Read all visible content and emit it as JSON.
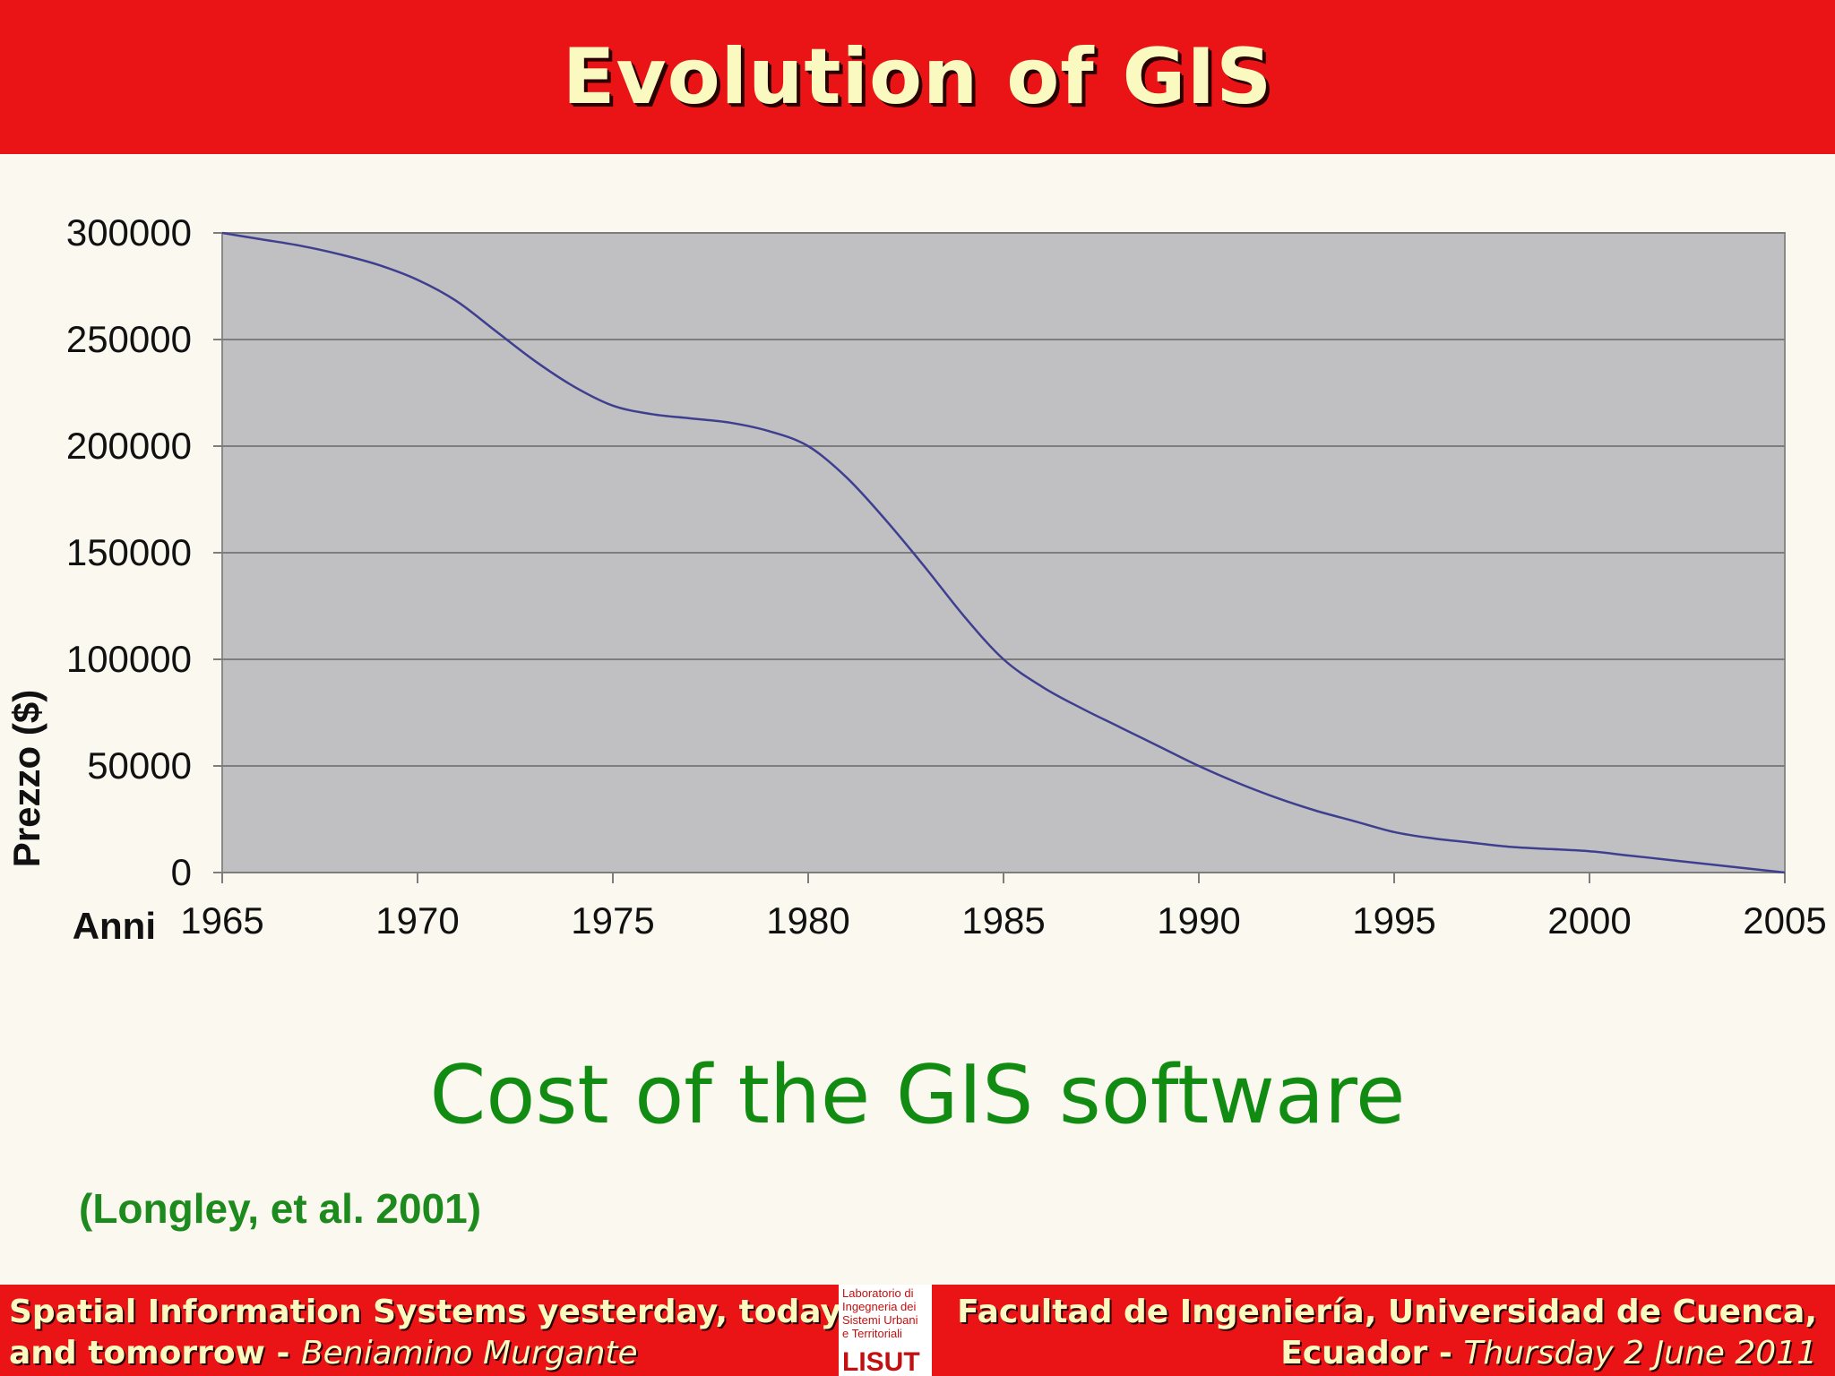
{
  "header": {
    "title": "Evolution of GIS"
  },
  "chart_data": {
    "type": "line",
    "title": "",
    "ylabel": "Prezzo ($)",
    "xlabel": "Anni",
    "xlim": [
      1965,
      2005
    ],
    "ylim": [
      0,
      300000
    ],
    "x_ticks": [
      "1965",
      "1970",
      "1975",
      "1980",
      "1985",
      "1990",
      "1995",
      "2000",
      "2005"
    ],
    "y_ticks": [
      "300000",
      "250000",
      "200000",
      "150000",
      "100000",
      "50000",
      "0"
    ],
    "grid": true,
    "background": "#c0bfc2",
    "line_color": "#3f3f8f",
    "series": [
      {
        "x": [
          1965,
          1966,
          1967,
          1968,
          1969,
          1970,
          1971,
          1972,
          1973,
          1974,
          1975,
          1976,
          1977,
          1978,
          1979,
          1980,
          1981,
          1982,
          1983,
          1984,
          1985,
          1986,
          1987,
          1988,
          1989,
          1990,
          1991,
          1992,
          1993,
          1994,
          1995,
          1996,
          1997,
          1998,
          1999,
          2000,
          2001,
          2002,
          2003,
          2004,
          2005
        ],
        "values": [
          300000,
          297000,
          294000,
          290000,
          285000,
          278000,
          268000,
          254000,
          240000,
          228000,
          219000,
          215000,
          213000,
          211000,
          207000,
          200000,
          185000,
          165000,
          143000,
          120000,
          100000,
          87000,
          77000,
          68000,
          59000,
          50000,
          42000,
          35000,
          29000,
          24000,
          19000,
          16000,
          14000,
          12000,
          11000,
          10000,
          8000,
          6000,
          4000,
          2000,
          0
        ]
      }
    ]
  },
  "caption": "Cost of the GIS software",
  "citation": "(Longley, et al. 2001)",
  "footer": {
    "left_line1": "Spatial Information Systems yesterday, today",
    "left_line2_bold": "and tomorrow -",
    "left_line2_italic": "Beniamino Murgante",
    "right_line1": "Facultad de Ingeniería, Universidad de Cuenca,",
    "right_line2_bold": "Ecuador -",
    "right_line2_italic": "Thursday 2 June 2011",
    "logo_lines": [
      "Laboratorio di",
      "Ingegneria dei",
      "Sistemi Urbani",
      "e Territoriali"
    ],
    "logo_mark": "LISUT"
  }
}
